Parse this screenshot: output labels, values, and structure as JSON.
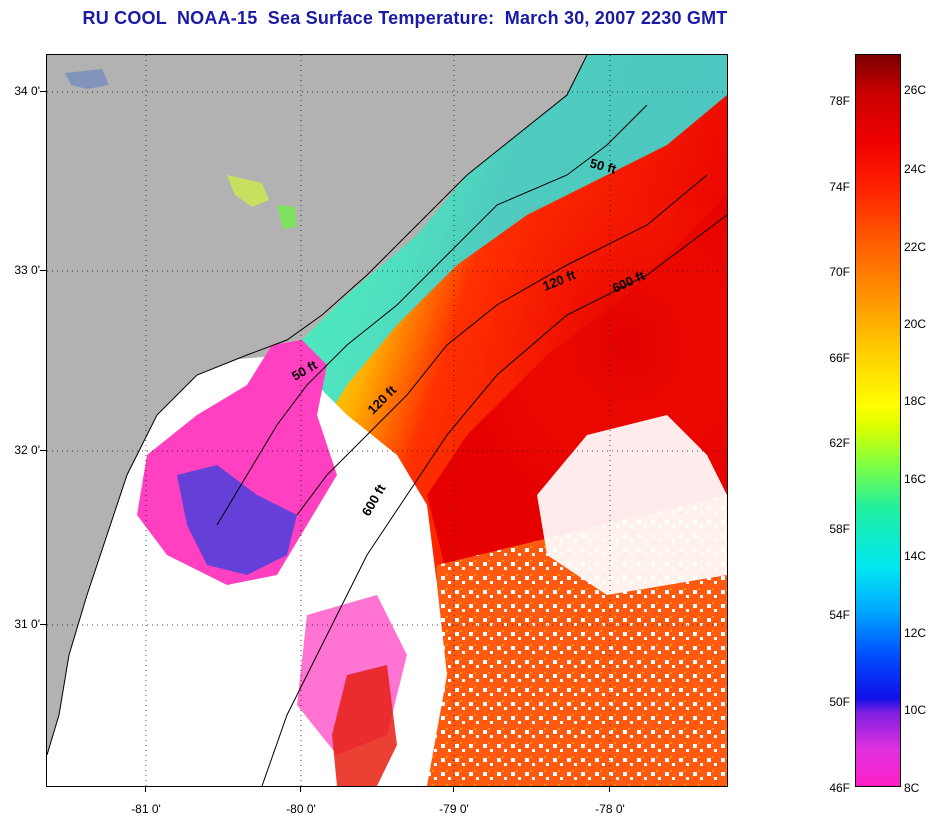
{
  "title": "RU COOL  NOAA-15  Sea Surface Temperature:  March 30, 2007 2230 GMT",
  "latitude_labels": [
    "34 0'",
    "33 0'",
    "32 0'",
    "31 0'"
  ],
  "longitude_labels": [
    "-81 0'",
    "-80 0'",
    "-79 0'",
    "-78 0'"
  ],
  "contour_labels": [
    "50 ft",
    "120 ft",
    "600 ft",
    "50 ft",
    "120 ft",
    "600 ft"
  ],
  "colorbar": {
    "fahrenheit_labels": [
      "78F",
      "74F",
      "70F",
      "66F",
      "62F",
      "58F",
      "54F",
      "50F",
      "46F"
    ],
    "celsius_labels": [
      "26C",
      "24C",
      "22C",
      "20C",
      "18C",
      "16C",
      "14C",
      "12C",
      "10C",
      "8C"
    ]
  },
  "colors": {
    "land": "#b2b2b2",
    "cloud": "#ffffff",
    "title": "#1a1aa8"
  }
}
